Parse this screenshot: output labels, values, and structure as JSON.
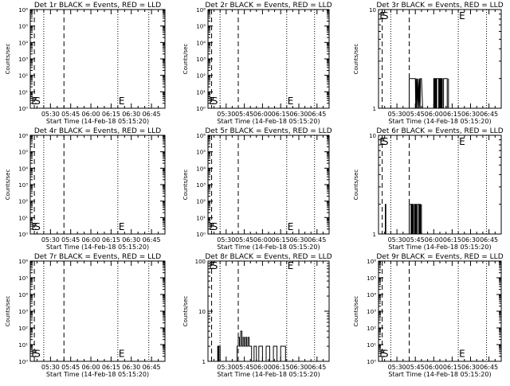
{
  "figure": {
    "time_ticks": [
      "05:30",
      "05:45",
      "06:00",
      "06:15",
      "06:30",
      "06:45"
    ],
    "marker_labels": {
      "e": "E",
      "s": "S"
    },
    "colors": {
      "events": "#000000",
      "lld": "#ff0000",
      "background": "#ffffff"
    }
  },
  "chart_data": [
    {
      "type": "line",
      "title": "Det 1r BLACK = Events, RED = LLD",
      "xlabel": "Start Time (14-Feb-18 05:15:20)",
      "ylabel": "Counts/sec",
      "yscale": "log",
      "ylim": [
        1,
        1000000
      ],
      "y_ticks": [
        "10⁰",
        "10¹",
        "10²",
        "10³",
        "10⁴",
        "10⁵",
        "10⁶"
      ],
      "x_range_min": [
        0,
        100
      ],
      "x_ticks_min": [
        15,
        30,
        45,
        60,
        75,
        90
      ],
      "dashed_lines_min": [
        3,
        25
      ],
      "dotted_lines_min": [
        10,
        65,
        88
      ],
      "markers": [
        {
          "label": "E",
          "x_min": 0.2,
          "y_frac": 0.09
        },
        {
          "label": "S",
          "x_min": 2.5,
          "y_frac": 0.09
        },
        {
          "label": "E",
          "x_min": 65,
          "y_frac": 0.09
        }
      ],
      "series": [
        {
          "name": "Events",
          "x_min": [],
          "y": []
        }
      ]
    },
    {
      "type": "line",
      "title": "Det 2r BLACK = Events, RED = LLD",
      "xlabel": "Start Time (14-Feb-18 05:15:20)",
      "ylabel": "Counts/sec",
      "yscale": "log",
      "ylim": [
        1,
        1000000
      ],
      "y_ticks": [
        "10⁰",
        "10¹",
        "10²",
        "10³",
        "10⁴",
        "10⁵",
        "10⁶"
      ],
      "x_range_min": [
        0,
        100
      ],
      "x_ticks_min": [
        15,
        30,
        45,
        60,
        75,
        90
      ],
      "dashed_lines_min": [
        3,
        25
      ],
      "dotted_lines_min": [
        10,
        65,
        88
      ],
      "markers": [
        {
          "label": "E",
          "x_min": 0.2,
          "y_frac": 0.09
        },
        {
          "label": "S",
          "x_min": 2.5,
          "y_frac": 0.09
        },
        {
          "label": "E",
          "x_min": 65,
          "y_frac": 0.09
        }
      ],
      "series": [
        {
          "name": "Events",
          "x_min": [],
          "y": []
        }
      ]
    },
    {
      "type": "line",
      "title": "Det 3r BLACK = Events, RED = LLD",
      "xlabel": "Start Time (14-Feb-18 05:15:20)",
      "ylabel": "Counts/sec",
      "yscale": "log",
      "ylim": [
        1,
        10
      ],
      "y_ticks": [
        "1",
        "10"
      ],
      "x_range_min": [
        0,
        100
      ],
      "x_ticks_min": [
        15,
        30,
        45,
        60,
        75,
        90
      ],
      "dashed_lines_min": [
        3,
        25
      ],
      "dotted_lines_min": [
        10,
        65,
        88
      ],
      "markers": [
        {
          "label": "E",
          "x_min": 0.2,
          "y_frac": 0.95
        },
        {
          "label": "S",
          "x_min": 2.5,
          "y_frac": 0.95
        },
        {
          "label": "E",
          "x_min": 65,
          "y_frac": 0.95
        }
      ],
      "series": [
        {
          "name": "Events",
          "x_min": [
            25,
            25,
            26,
            30,
            30.3,
            30.7,
            31,
            31.5,
            32,
            32.5,
            33,
            33.4,
            33.8,
            34.2,
            35,
            36,
            45,
            45,
            45.3,
            45.3,
            45.6,
            45.6,
            46,
            46,
            46.5,
            46.5,
            47,
            47,
            47.5,
            47.5,
            49,
            49,
            49.5,
            49.5,
            50,
            50,
            50.5,
            50.5,
            51,
            51,
            51.5,
            51.5,
            52,
            52,
            53,
            53,
            56,
            56,
            57,
            57
          ],
          "y": [
            1,
            2,
            2,
            2,
            1,
            2,
            1,
            2,
            1,
            2,
            1,
            2,
            1,
            2,
            2,
            1,
            1,
            2,
            2,
            1,
            1,
            2,
            2,
            1,
            1,
            2,
            2,
            1,
            1,
            2,
            2,
            1,
            1,
            2,
            2,
            1,
            1,
            2,
            2,
            1,
            1,
            2,
            2,
            1,
            1,
            2,
            2,
            1,
            1,
            2
          ]
        }
      ]
    },
    {
      "type": "line",
      "title": "Det 4r BLACK = Events, RED = LLD",
      "xlabel": "Start Time (14-Feb-18 05:15:20)",
      "ylabel": "Counts/sec",
      "yscale": "log",
      "ylim": [
        1,
        1000000
      ],
      "y_ticks": [
        "10⁰",
        "10¹",
        "10²",
        "10³",
        "10⁴",
        "10⁵",
        "10⁶"
      ],
      "x_range_min": [
        0,
        100
      ],
      "x_ticks_min": [
        15,
        30,
        45,
        60,
        75,
        90
      ],
      "dashed_lines_min": [
        3,
        25
      ],
      "dotted_lines_min": [
        10,
        65,
        88
      ],
      "markers": [
        {
          "label": "E",
          "x_min": 0.2,
          "y_frac": 0.09
        },
        {
          "label": "S",
          "x_min": 2.5,
          "y_frac": 0.09
        },
        {
          "label": "E",
          "x_min": 65,
          "y_frac": 0.09
        }
      ],
      "series": [
        {
          "name": "Events",
          "x_min": [],
          "y": []
        }
      ]
    },
    {
      "type": "line",
      "title": "Det 5r BLACK = Events, RED = LLD",
      "xlabel": "Start Time (14-Feb-18 05:15:20)",
      "ylabel": "Counts/sec",
      "yscale": "log",
      "ylim": [
        1,
        1000000
      ],
      "y_ticks": [
        "10⁰",
        "10¹",
        "10²",
        "10³",
        "10⁴",
        "10⁵",
        "10⁶"
      ],
      "x_range_min": [
        0,
        100
      ],
      "x_ticks_min": [
        15,
        30,
        45,
        60,
        75,
        90
      ],
      "dashed_lines_min": [
        3,
        25
      ],
      "dotted_lines_min": [
        10,
        65,
        88
      ],
      "markers": [
        {
          "label": "E",
          "x_min": 0.2,
          "y_frac": 0.09
        },
        {
          "label": "S",
          "x_min": 2.5,
          "y_frac": 0.09
        },
        {
          "label": "E",
          "x_min": 65,
          "y_frac": 0.09
        }
      ],
      "series": [
        {
          "name": "Events",
          "x_min": [],
          "y": []
        }
      ]
    },
    {
      "type": "line",
      "title": "Det 6r BLACK = Events, RED = LLD",
      "xlabel": "Start Time (14-Feb-18 05:15:20)",
      "ylabel": "Counts/sec",
      "yscale": "log",
      "ylim": [
        1,
        10
      ],
      "y_ticks": [
        "1",
        "10"
      ],
      "x_range_min": [
        0,
        100
      ],
      "x_ticks_min": [
        15,
        30,
        45,
        60,
        75,
        90
      ],
      "dashed_lines_min": [
        3,
        25
      ],
      "dotted_lines_min": [
        10,
        65,
        88
      ],
      "markers": [
        {
          "label": "E",
          "x_min": 0.2,
          "y_frac": 0.95
        },
        {
          "label": "S",
          "x_min": 2.5,
          "y_frac": 0.95
        },
        {
          "label": "E",
          "x_min": 65,
          "y_frac": 0.95
        }
      ],
      "series": [
        {
          "name": "Events",
          "x_min": [
            5.5,
            5.5,
            6,
            6,
            25,
            25,
            26,
            26.5,
            26.5,
            27,
            27,
            27.5,
            27.5,
            28,
            28,
            28.5,
            28.5,
            29.5,
            29.5,
            30,
            30,
            30.5,
            30.5,
            31,
            31,
            31.8,
            31.8,
            33,
            33,
            33.6,
            33.6,
            34.2,
            34.2,
            35,
            35
          ],
          "y": [
            1,
            2,
            2,
            1,
            1,
            2,
            2,
            2,
            1,
            1,
            2,
            2,
            1,
            1,
            2,
            2,
            1,
            1,
            2,
            2,
            1,
            1,
            2,
            2,
            1,
            1,
            2,
            2,
            1,
            1,
            2,
            2,
            1,
            1,
            2
          ]
        }
      ]
    },
    {
      "type": "line",
      "title": "Det 7r BLACK = Events, RED = LLD",
      "xlabel": "Start Time (14-Feb-18 05:15:20)",
      "ylabel": "Counts/sec",
      "yscale": "log",
      "ylim": [
        1,
        1000000
      ],
      "y_ticks": [
        "10⁰",
        "10¹",
        "10²",
        "10³",
        "10⁴",
        "10⁵",
        "10⁶"
      ],
      "x_range_min": [
        0,
        100
      ],
      "x_ticks_min": [
        15,
        30,
        45,
        60,
        75,
        90
      ],
      "dashed_lines_min": [
        3,
        25
      ],
      "dotted_lines_min": [
        10,
        65,
        88
      ],
      "markers": [
        {
          "label": "E",
          "x_min": 0.2,
          "y_frac": 0.09
        },
        {
          "label": "S",
          "x_min": 2.5,
          "y_frac": 0.09
        },
        {
          "label": "E",
          "x_min": 65,
          "y_frac": 0.09
        }
      ],
      "series": [
        {
          "name": "Events",
          "x_min": [],
          "y": []
        }
      ]
    },
    {
      "type": "line",
      "title": "Det 8r BLACK = Events, RED = LLD",
      "xlabel": "Start Time (14-Feb-18 05:15:20)",
      "ylabel": "Counts/sec",
      "yscale": "log",
      "ylim": [
        1,
        100
      ],
      "y_ticks": [
        "1",
        "10",
        "100"
      ],
      "x_range_min": [
        0,
        100
      ],
      "x_ticks_min": [
        15,
        30,
        45,
        60,
        75,
        90
      ],
      "dashed_lines_min": [
        3,
        25
      ],
      "dotted_lines_min": [
        10,
        65,
        88
      ],
      "markers": [
        {
          "label": "E",
          "x_min": 0.2,
          "y_frac": 0.97
        },
        {
          "label": "S",
          "x_min": 2.5,
          "y_frac": 0.97
        },
        {
          "label": "E",
          "x_min": 65,
          "y_frac": 0.97
        }
      ],
      "series": [
        {
          "name": "Events",
          "x_min": [
            8,
            8,
            8.5,
            8.5,
            9,
            9,
            10,
            10,
            24,
            24,
            25,
            25,
            26,
            26,
            27,
            27,
            28,
            28,
            29,
            29,
            30,
            30,
            31,
            31,
            32,
            32,
            33,
            33,
            34,
            34,
            36,
            36,
            38,
            38,
            40,
            40,
            42,
            42,
            45,
            45,
            48,
            48,
            51,
            51,
            54,
            54,
            57,
            57,
            60,
            60,
            64,
            64,
            65
          ],
          "y": [
            1,
            2,
            2,
            1,
            1,
            2,
            2,
            1,
            1,
            2,
            2,
            3,
            3,
            2,
            2,
            4,
            4,
            2,
            2,
            3,
            3,
            2,
            2,
            3,
            3,
            2,
            2,
            3,
            3,
            2,
            2,
            1,
            1,
            2,
            2,
            1,
            1,
            2,
            2,
            1,
            1,
            2,
            2,
            1,
            1,
            2,
            2,
            1,
            1,
            2,
            2,
            1,
            1
          ]
        }
      ]
    },
    {
      "type": "line",
      "title": "Det 9r BLACK = Events, RED = LLD",
      "xlabel": "Start Time (14-Feb-18 05:15:20)",
      "ylabel": "Counts/sec",
      "yscale": "log",
      "ylim": [
        1,
        1000000
      ],
      "y_ticks": [
        "10⁰",
        "10¹",
        "10²",
        "10³",
        "10⁴",
        "10⁵",
        "10⁶"
      ],
      "x_range_min": [
        0,
        100
      ],
      "x_ticks_min": [
        15,
        30,
        45,
        60,
        75,
        90
      ],
      "dashed_lines_min": [
        3,
        25
      ],
      "dotted_lines_min": [
        10,
        65,
        88
      ],
      "markers": [
        {
          "label": "E",
          "x_min": 0.2,
          "y_frac": 0.09
        },
        {
          "label": "S",
          "x_min": 2.5,
          "y_frac": 0.09
        },
        {
          "label": "E",
          "x_min": 65,
          "y_frac": 0.09
        }
      ],
      "series": [
        {
          "name": "Events",
          "x_min": [],
          "y": []
        }
      ]
    }
  ]
}
